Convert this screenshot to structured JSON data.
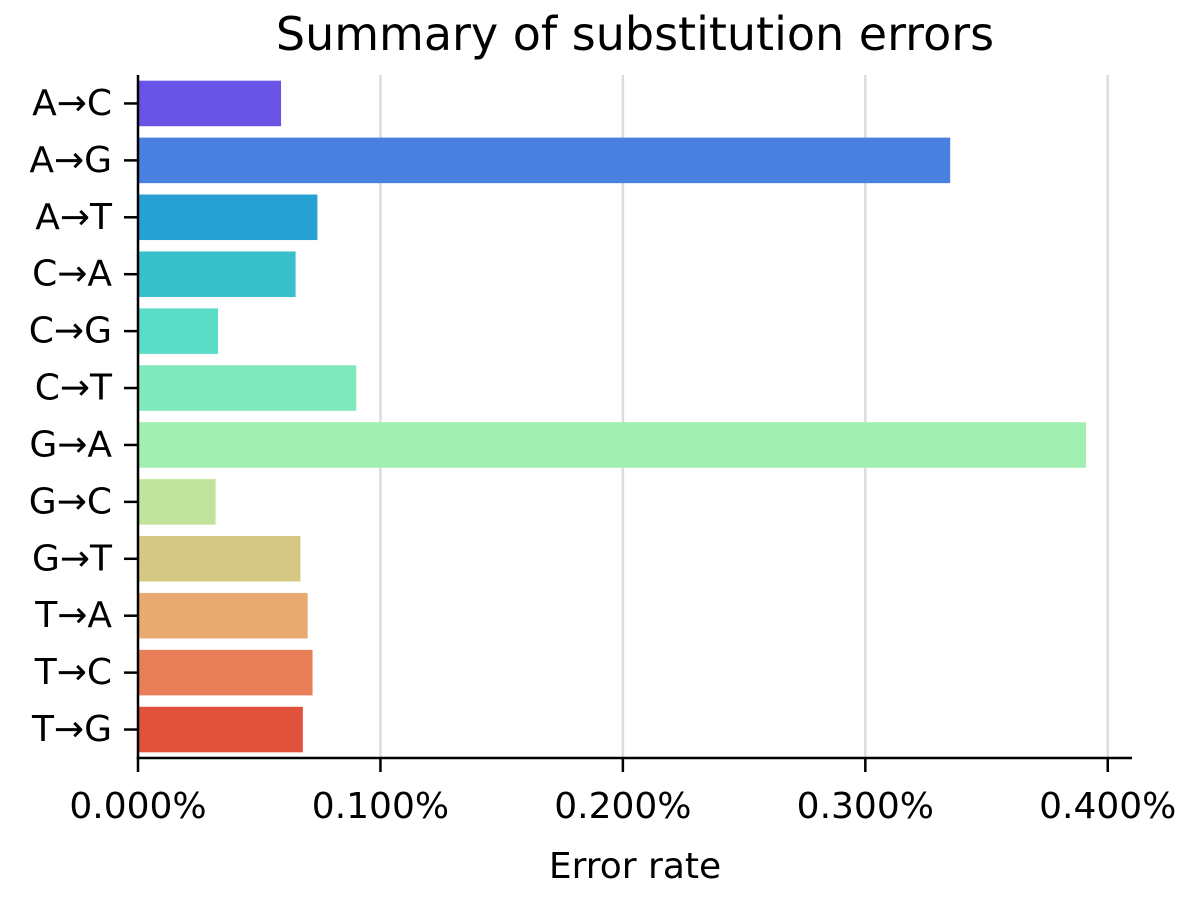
{
  "chart_data": {
    "type": "bar",
    "orientation": "horizontal",
    "title": "Summary of substitution errors",
    "xlabel": "Error rate",
    "ylabel": "",
    "categories": [
      "A→C",
      "A→G",
      "A→T",
      "C→A",
      "C→G",
      "C→T",
      "G→A",
      "G→C",
      "G→T",
      "T→A",
      "T→C",
      "T→G"
    ],
    "values": [
      0.059,
      0.335,
      0.074,
      0.065,
      0.033,
      0.09,
      0.391,
      0.032,
      0.067,
      0.07,
      0.072,
      0.068
    ],
    "value_unit": "%",
    "xlim": [
      0,
      0.41
    ],
    "x_ticks": [
      0.0,
      0.1,
      0.2,
      0.3,
      0.4
    ],
    "x_tick_labels": [
      "0.000%",
      "0.100%",
      "0.200%",
      "0.300%",
      "0.400%"
    ],
    "grid": "vertical",
    "legend": "none",
    "colors": [
      "#6a54e8",
      "#4a80df",
      "#27a1d3",
      "#37bfca",
      "#5bdcc6",
      "#80e8bd",
      "#a1f0b1",
      "#c1e39c",
      "#d4c884",
      "#e9aa72",
      "#e87f58",
      "#e1513b"
    ]
  }
}
